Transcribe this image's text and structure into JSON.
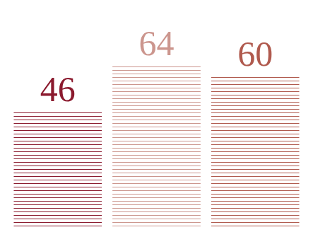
{
  "chart_data": {
    "type": "bar",
    "categories": [
      null,
      null,
      null
    ],
    "values": [
      46,
      64,
      60
    ],
    "colors": [
      "#8b1a2e",
      "#cc968e",
      "#b05a4e"
    ],
    "ylim": [
      0,
      64
    ],
    "yticks": [],
    "data_labels": true,
    "tick_labels": false,
    "grid": false
  }
}
